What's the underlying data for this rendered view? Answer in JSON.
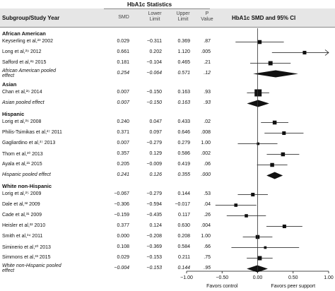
{
  "header": {
    "stats_title": "HbA1c Statistics",
    "col_study": "Subgroup/Study Year",
    "col_smd": "SMD",
    "col_lower": "Lower Limit",
    "col_upper": "Upper Limit",
    "col_p": "P Value",
    "plot_title": "HbA1c SMD and 95% CI"
  },
  "chart_data": {
    "type": "forest",
    "x_axis": {
      "ticks": [
        "−1.00",
        "−0.50",
        "0.00",
        "0.50",
        "1.00"
      ],
      "tick_values": [
        -1.0,
        -0.5,
        0.0,
        0.5,
        1.0
      ],
      "xlim": [
        -1.0,
        1.0
      ]
    },
    "favors_left": "Favors control",
    "favors_right": "Favors peer support",
    "subgroups": [
      {
        "name": "African American",
        "studies": [
          {
            "label": "Keyserling et al,²³ 2002",
            "smd": "0.029",
            "lower": "−0.311",
            "upper": "0.369",
            "p": ".87",
            "v": [
              0.029,
              -0.311,
              0.369
            ],
            "w": 1.0
          },
          {
            "label": "Long et al,²⁹ 2012",
            "smd": "0.661",
            "lower": "0.202",
            "upper": "1.120",
            "p": ".005",
            "v": [
              0.661,
              0.202,
              1.12
            ],
            "w": 0.9
          },
          {
            "label": "Safford et al,²⁸ 2015",
            "smd": "0.181",
            "lower": "−0.104",
            "upper": "0.465",
            "p": ".21",
            "v": [
              0.181,
              -0.104,
              0.465
            ],
            "w": 1.1
          }
        ],
        "pooled": {
          "label": "African American pooled effect",
          "smd": "0.254",
          "lower": "−0.064",
          "upper": "0.571",
          "p": ".12",
          "v": [
            0.254,
            -0.064,
            0.571
          ]
        }
      },
      {
        "name": "Asian",
        "studies": [
          {
            "label": "Chan et al,²⁶ 2014",
            "smd": "0.007",
            "lower": "−0.150",
            "upper": "0.163",
            "p": ".93",
            "v": [
              0.007,
              -0.15,
              0.163
            ],
            "w": 2.0
          }
        ],
        "pooled": {
          "label": "Asian pooled effect",
          "smd": "0.007",
          "lower": "−0.150",
          "upper": "0.163",
          "p": ".93",
          "v": [
            0.007,
            -0.15,
            0.163
          ]
        }
      },
      {
        "name": "Hispanic",
        "studies": [
          {
            "label": "Lorig et al,²⁶ 2008",
            "smd": "0.240",
            "lower": "0.047",
            "upper": "0.433",
            "p": ".02",
            "v": [
              0.24,
              0.047,
              0.433
            ],
            "w": 1.0
          },
          {
            "label": "Philis-Tsimikas et al,²⁷ 2011",
            "smd": "0.371",
            "lower": "0.097",
            "upper": "0.646",
            "p": ".008",
            "v": [
              0.371,
              0.097,
              0.646
            ],
            "w": 0.9
          },
          {
            "label": "Gagliardino et al,³⁷ 2013",
            "smd": "0.007",
            "lower": "−0.279",
            "upper": "0.279",
            "p": "1.00",
            "v": [
              0.007,
              -0.279,
              0.279
            ],
            "w": 0.6
          },
          {
            "label": "Thom et al,³⁰ 2013",
            "smd": "0.357",
            "lower": "0.129",
            "upper": "0.586",
            "p": ".002",
            "v": [
              0.357,
              0.129,
              0.586
            ],
            "w": 1.0
          },
          {
            "label": "Ayala et al,²¹ 2015",
            "smd": "0.205",
            "lower": "−0.009",
            "upper": "0.419",
            "p": ".06",
            "v": [
              0.205,
              -0.009,
              0.419
            ],
            "w": 1.0
          }
        ],
        "pooled": {
          "label": "Hispanic pooled effect",
          "smd": "0.241",
          "lower": "0.126",
          "upper": "0.355",
          "p": ".000",
          "v": [
            0.241,
            0.126,
            0.355
          ]
        }
      },
      {
        "name": "White non-Hispanic",
        "studies": [
          {
            "label": "Lorig et al,²⁵ 2009",
            "smd": "−0.067",
            "lower": "−0.279",
            "upper": "0.144",
            "p": ".53",
            "v": [
              -0.067,
              -0.279,
              0.144
            ],
            "w": 0.9
          },
          {
            "label": "Dale et al,³² 2009",
            "smd": "−0.306",
            "lower": "−0.594",
            "upper": "−0.017",
            "p": ".04",
            "v": [
              -0.306,
              -0.594,
              -0.017
            ],
            "w": 0.8
          },
          {
            "label": "Cade et al,³¹ 2009",
            "smd": "−0.159",
            "lower": "−0.435",
            "upper": "0.117",
            "p": ".26",
            "v": [
              -0.159,
              -0.435,
              0.117
            ],
            "w": 0.8
          },
          {
            "label": "Heisler et al,²² 2010",
            "smd": "0.377",
            "lower": "0.124",
            "upper": "0.630",
            "p": ".004",
            "v": [
              0.377,
              0.124,
              0.63
            ],
            "w": 0.9
          },
          {
            "label": "Smith et al,³⁴ 2011",
            "smd": "0.000",
            "lower": "−0.208",
            "upper": "0.208",
            "p": "1.00",
            "v": [
              0.0,
              -0.208,
              0.208
            ],
            "w": 1.0
          },
          {
            "label": "Siminerio et al,²⁰ 2013",
            "smd": "0.108",
            "lower": "−0.369",
            "upper": "0.584",
            "p": ".66",
            "v": [
              0.108,
              -0.369,
              0.584
            ],
            "w": 0.6
          },
          {
            "label": "Simmons et al,³³ 2015",
            "smd": "0.029",
            "lower": "−0.153",
            "upper": "0.211",
            "p": ".75",
            "v": [
              0.029,
              -0.153,
              0.211
            ],
            "w": 1.1
          }
        ],
        "pooled": {
          "label": "White non-Hispanic pooled effect",
          "smd": "−0.004",
          "lower": "−0.153",
          "upper": "0.144",
          "p": ".95",
          "v": [
            -0.004,
            -0.153,
            0.144
          ]
        }
      }
    ]
  }
}
